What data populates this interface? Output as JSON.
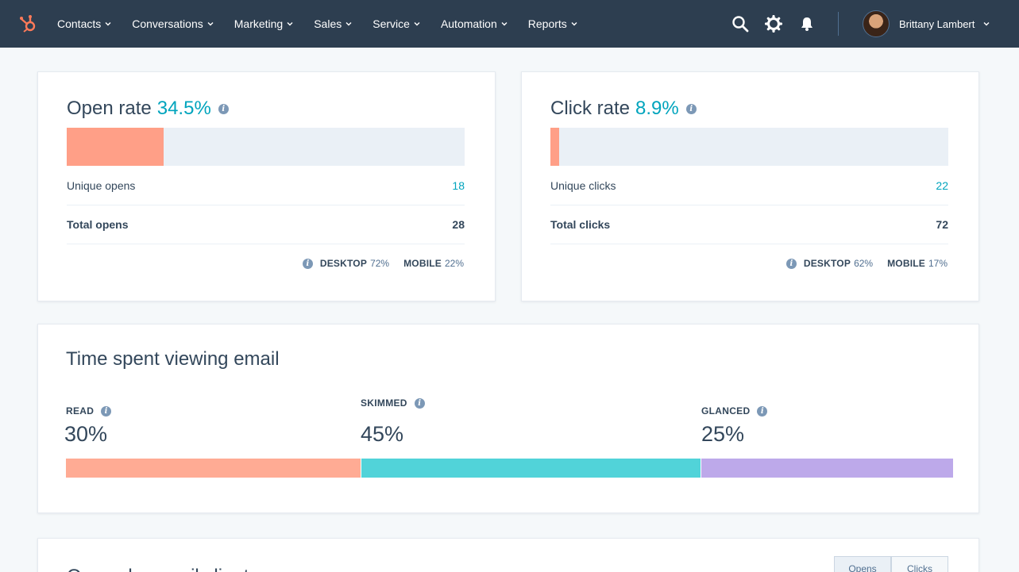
{
  "nav": {
    "items": [
      {
        "label": "Contacts"
      },
      {
        "label": "Conversations"
      },
      {
        "label": "Marketing"
      },
      {
        "label": "Sales"
      },
      {
        "label": "Service"
      },
      {
        "label": "Automation"
      },
      {
        "label": "Reports"
      }
    ],
    "user_name": "Brittany Lambert",
    "accent": "#ff7a59"
  },
  "open_card": {
    "title": "Open rate",
    "rate": "34.5%",
    "bar_fraction": 0.243,
    "unique_label": "Unique opens",
    "unique_value": "18",
    "total_label": "Total opens",
    "total_value": "28",
    "desktop_label": "DESKTOP",
    "desktop_pct": "72%",
    "mobile_label": "MOBILE",
    "mobile_pct": "22%"
  },
  "click_card": {
    "title": "Click rate",
    "rate": "8.9%",
    "bar_fraction": 0.022,
    "unique_label": "Unique clicks",
    "unique_value": "22",
    "total_label": "Total clicks",
    "total_value": "72",
    "desktop_label": "DESKTOP",
    "desktop_pct": "62%",
    "mobile_label": "MOBILE",
    "mobile_pct": "17%"
  },
  "time_card": {
    "title": "Time spent viewing email",
    "segments": [
      {
        "label": "READ",
        "pct": "30%",
        "color": "#ffab94"
      },
      {
        "label": "SKIMMED",
        "pct": "45%",
        "color": "#51d3d9"
      },
      {
        "label": "GLANCED",
        "pct": "25%",
        "color": "#bda9ea"
      }
    ]
  },
  "bottom_card": {
    "title": "Opens by email client",
    "toggle": {
      "opens": "Opens",
      "clicks": "Clicks"
    }
  },
  "colors": {
    "nav_bg": "#2d3e50",
    "link": "#00a4bd",
    "bar_fill": "#ff9f87",
    "bar_track": "#eaf0f6"
  }
}
